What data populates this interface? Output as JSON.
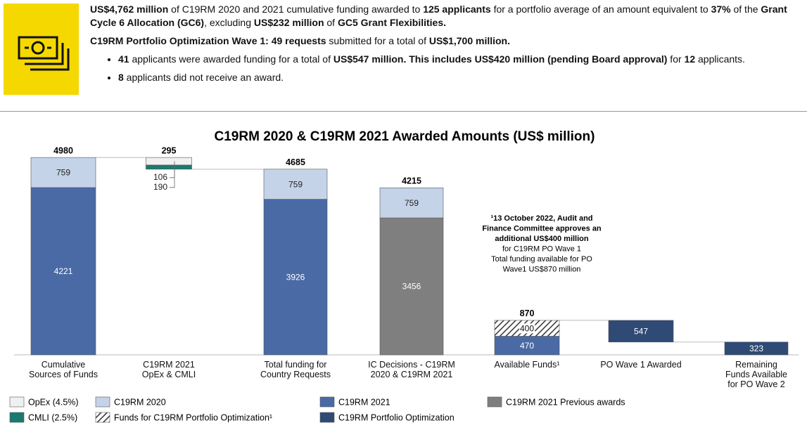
{
  "header": {
    "paragraphs": [
      [
        {
          "text": "US$4,762 million",
          "bold": true
        },
        {
          "text": " of C19RM 2020 and 2021 cumulative funding awarded to "
        },
        {
          "text": "125 applicants",
          "bold": true
        },
        {
          "text": " for a portfolio average of an amount equivalent to "
        },
        {
          "text": "37%",
          "bold": true
        },
        {
          "text": " of the "
        },
        {
          "text": "Grant Cycle 6 Allocation (GC6)",
          "bold": true
        },
        {
          "text": ", excluding "
        },
        {
          "text": "US$232 million",
          "bold": true
        },
        {
          "text": " of "
        },
        {
          "text": "GC5 Grant Flexibilities.",
          "bold": true
        }
      ],
      [
        {
          "text": "C19RM Portfolio Optimization Wave 1: 49 requests",
          "bold": true
        },
        {
          "text": " submitted for a total of "
        },
        {
          "text": "US$1,700 million.",
          "bold": true
        }
      ]
    ],
    "bullets": [
      [
        {
          "text": "41",
          "bold": true
        },
        {
          "text": " applicants were awarded funding for a total of "
        },
        {
          "text": "US$547 million. This includes US$420 million (pending Board approval)",
          "bold": true
        },
        {
          "text": " for "
        },
        {
          "text": "12",
          "bold": true
        },
        {
          "text": " applicants."
        }
      ],
      [
        {
          "text": "8",
          "bold": true
        },
        {
          "text": " applicants did not receive an award."
        }
      ]
    ]
  },
  "chart_data": {
    "type": "waterfall",
    "title": "C19RM 2020 & C19RM 2021 Awarded Amounts (US$ million)",
    "categories": [
      "Cumulative\nSources of Funds",
      "C19RM 2021\nOpEx & CMLI",
      "Total funding for\nCountry Requests",
      "IC Decisions - C19RM\n2020 & C19RM 2021",
      "Available Funds¹",
      "PO Wave 1 Awarded",
      "Remaining\nFunds Available\nfor PO Wave 2"
    ],
    "totals": [
      4980,
      295,
      4685,
      4215,
      870,
      null,
      null
    ],
    "value_labels_totals": null,
    "ylim": [
      0,
      5600
    ],
    "series": [
      {
        "name": "C19RM 2021",
        "color": "#4a6aa5",
        "values": [
          4221,
          null,
          3926,
          null,
          470,
          null,
          null
        ]
      },
      {
        "name": "C19RM 2021 Previous awards",
        "color": "#7f7f7f",
        "values": [
          null,
          null,
          null,
          3456,
          null,
          null,
          null
        ]
      },
      {
        "name": "C19RM Portfolio Optimization",
        "color": "#2e4a75",
        "values": [
          null,
          null,
          null,
          null,
          null,
          547,
          323
        ]
      },
      {
        "name": "CMLI (2.5%)",
        "color": "#1a7a6e",
        "values": [
          null,
          106,
          null,
          null,
          null,
          null,
          null
        ]
      },
      {
        "name": "OpEx (4.5%)",
        "color": "#f0f0f0",
        "values": [
          null,
          190,
          null,
          null,
          null,
          null,
          null
        ]
      },
      {
        "name": "C19RM 2020",
        "color": "#c5d3e8",
        "values": [
          759,
          null,
          759,
          759,
          null,
          null,
          null
        ]
      },
      {
        "name": "Funds for C19RM Portfolio Optimization¹",
        "color": "#333333",
        "pattern": "hatch",
        "values": [
          null,
          null,
          null,
          null,
          400,
          null,
          null
        ]
      }
    ],
    "annotation": [
      {
        "text": "¹13 October 2022, Audit and",
        "bold": true
      },
      {
        "text": "Finance Committee approves an",
        "bold": true
      },
      {
        "text": "additional US$400 million",
        "bold": true
      },
      {
        "text": "for C19RM PO Wave 1"
      },
      {
        "text": "Total funding available for PO"
      },
      {
        "text": "Wave1 US$870 million"
      }
    ]
  }
}
